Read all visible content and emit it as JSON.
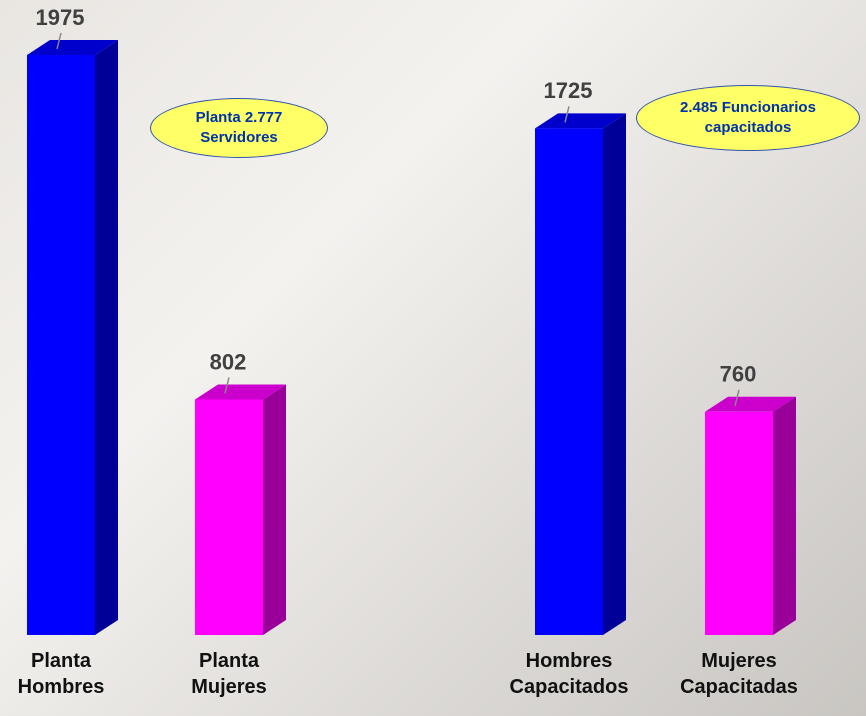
{
  "chart_data": [
    {
      "type": "bar3d",
      "categories": [
        "Planta Hombres",
        "Planta Mujeres"
      ],
      "values": [
        1975,
        802
      ],
      "colors": [
        "#0000ff",
        "#ff00ff"
      ],
      "annotation": "Planta 2.777 Servidores"
    },
    {
      "type": "bar3d",
      "categories": [
        "Hombres Capacitados",
        "Mujeres Capacitadas"
      ],
      "values": [
        1725,
        760
      ],
      "colors": [
        "#0000ff",
        "#ff00ff"
      ],
      "annotation": "2.485 Funcionarios capacitados"
    }
  ]
}
